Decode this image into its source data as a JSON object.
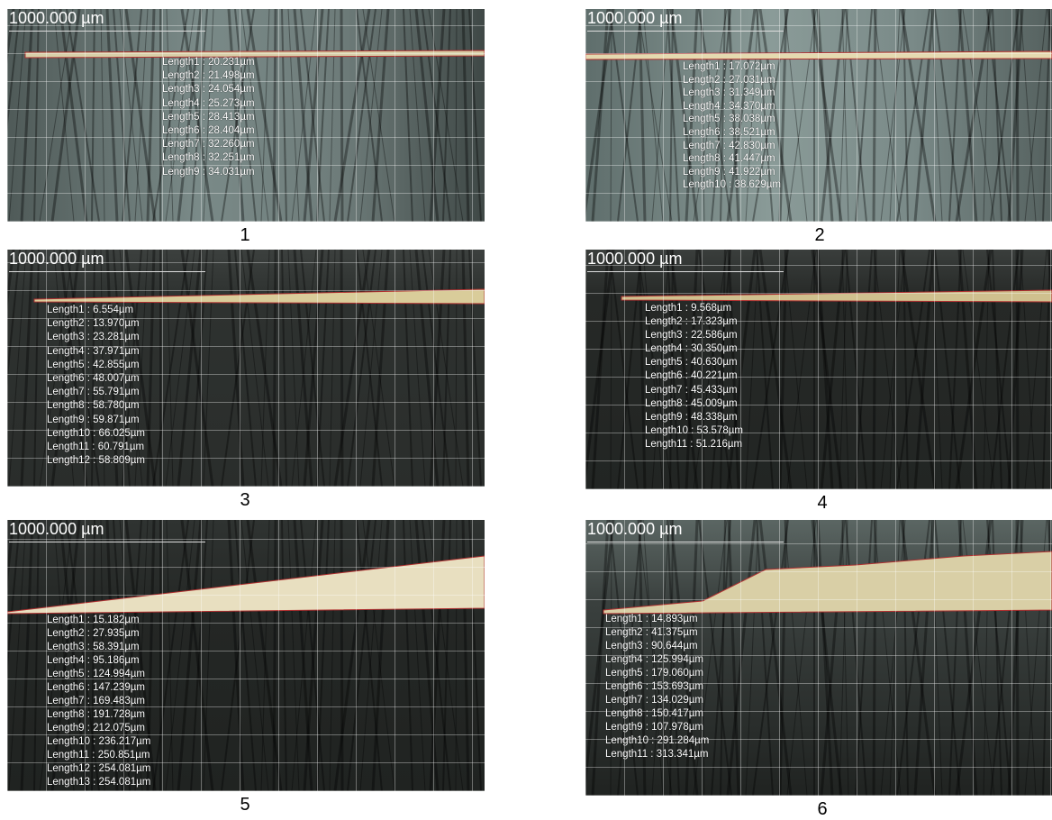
{
  "panels": [
    {
      "scale_label": "1000.000 µm",
      "caption": "1",
      "measurements": [
        "Length1 : 20.231µm",
        "Length2 : 21.498µm",
        "Length3 : 24.054µm",
        "Length4 : 25.273µm",
        "Length5 : 28.413µm",
        "Length6 : 28.404µm",
        "Length7 : 32.260µm",
        "Length8 : 32.251µm",
        "Length9 : 34.031µm"
      ]
    },
    {
      "scale_label": "1000.000 µm",
      "caption": "2",
      "measurements": [
        "Length1 : 17.072µm",
        "Length2 : 27.031µm",
        "Length3 : 31.349µm",
        "Length4 : 34.370µm",
        "Length5 : 38.038µm",
        "Length6 : 38.521µm",
        "Length7 : 42.830µm",
        "Length8 : 41.447µm",
        "Length9 : 41.922µm",
        "Length10 : 38.629µm"
      ]
    },
    {
      "scale_label": "1000.000 µm",
      "caption": "3",
      "measurements": [
        "Length1 : 6.554µm",
        "Length2 : 13.970µm",
        "Length3 : 23.281µm",
        "Length4 : 37.971µm",
        "Length5 : 42.855µm",
        "Length6 : 48.007µm",
        "Length7 : 55.791µm",
        "Length8 : 58.780µm",
        "Length9 : 59.871µm",
        "Length10 : 66.025µm",
        "Length11 : 60.791µm",
        "Length12 : 58.809µm"
      ]
    },
    {
      "scale_label": "1000.000 µm",
      "caption": "4",
      "measurements": [
        "Length1 : 9.568µm",
        "Length2 : 17.323µm",
        "Length3 : 22.586µm",
        "Length4 : 30.350µm",
        "Length5 : 40.630µm",
        "Length6 : 40.221µm",
        "Length7 : 45.433µm",
        "Length8 : 45.009µm",
        "Length9 : 48.338µm",
        "Length10 : 53.578µm",
        "Length11 : 51.216µm"
      ]
    },
    {
      "scale_label": "1000.000 µm",
      "caption": "5",
      "measurements": [
        "Length1 : 15.182µm",
        "Length2 : 27.935µm",
        "Length3 : 58.391µm",
        "Length4 : 95.186µm",
        "Length5 : 124.994µm",
        "Length6 : 147.239µm",
        "Length7 : 169.483µm",
        "Length8 : 191.728µm",
        "Length9 : 212.075µm",
        "Length10 : 236.217µm",
        "Length11 : 250.851µm",
        "Length12 : 254.081µm",
        "Length13 : 254.081µm"
      ]
    },
    {
      "scale_label": "1000.000 µm",
      "caption": "6",
      "measurements": [
        "Length1 : 14.893µm",
        "Length2 : 41.375µm",
        "Length3 : 90.644µm",
        "Length4 : 125.994µm",
        "Length5 : 179.060µm",
        "Length6 : 153.693µm",
        "Length7 : 134.029µm",
        "Length8 : 150.417µm",
        "Length9 : 107.978µm",
        "Length10 : 291.284µm",
        "Length11 : 313.341µm"
      ]
    }
  ]
}
